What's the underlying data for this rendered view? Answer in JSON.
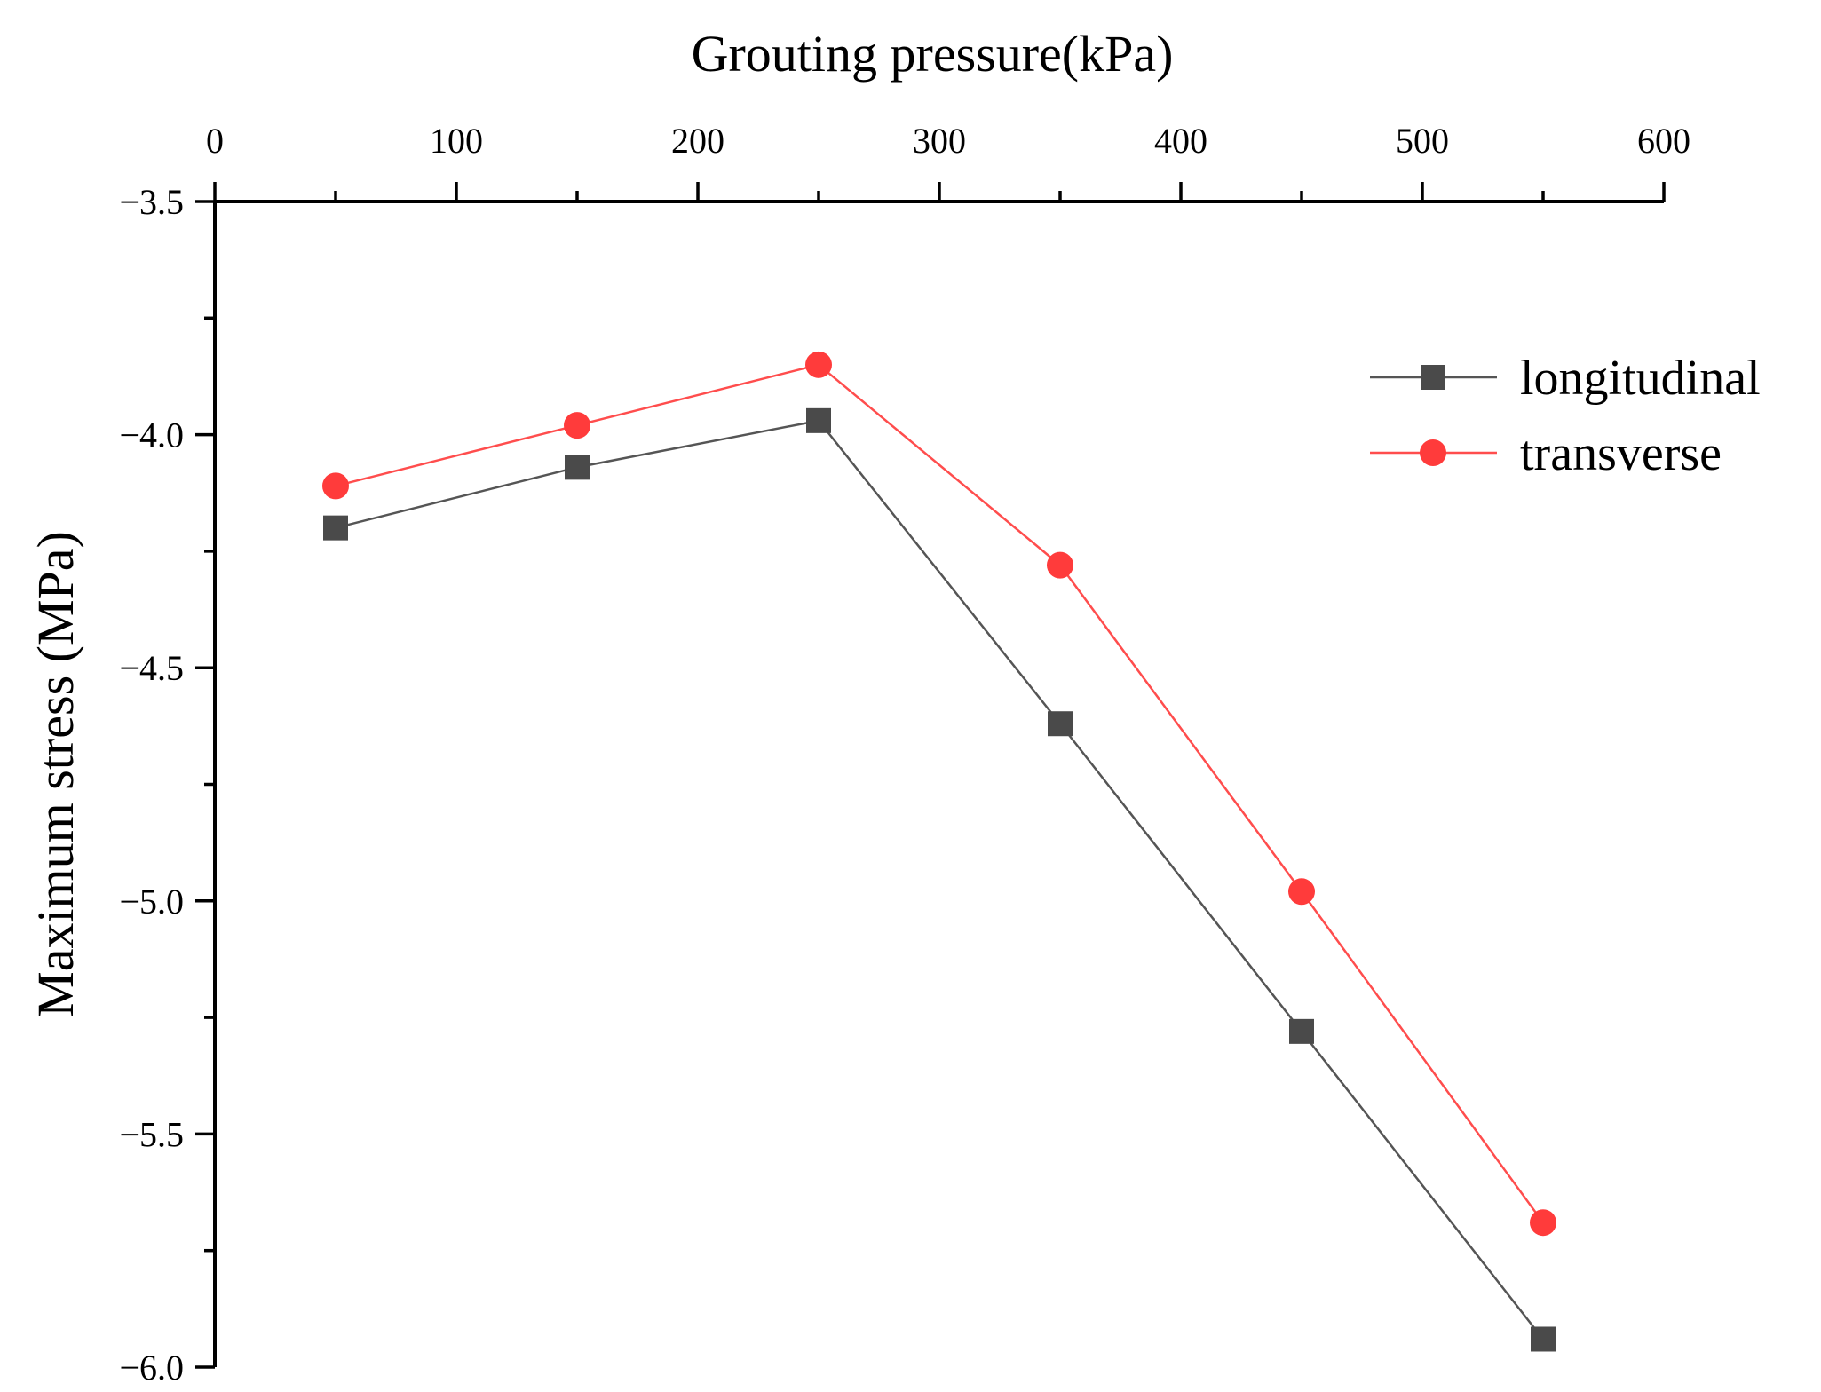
{
  "chart_data": {
    "type": "line",
    "title": "",
    "xlabel": "Grouting pressure(kPa)",
    "ylabel": "Maximum stress (MPa)",
    "xlim": [
      0,
      600
    ],
    "ylim": [
      -6.0,
      -3.5
    ],
    "x_ticks": [
      "0",
      "100",
      "200",
      "300",
      "400",
      "500",
      "600"
    ],
    "y_ticks": [
      "−3.5",
      "−4.0",
      "−4.5",
      "−5.0",
      "−5.5",
      "−6.0"
    ],
    "x_axis_position": "top",
    "grid": false,
    "legend_position": "top-right",
    "x": [
      50,
      150,
      250,
      350,
      450,
      550
    ],
    "series": [
      {
        "name": "longitudinal",
        "marker": "square",
        "line_color": "#555555",
        "marker_color": "#4a4a4a",
        "values": [
          -4.2,
          -4.07,
          -3.97,
          -4.62,
          -5.28,
          -5.94
        ]
      },
      {
        "name": "transverse",
        "marker": "circle",
        "line_color": "#ff4d4d",
        "marker_color": "#ff3b3b",
        "values": [
          -4.11,
          -3.98,
          -3.85,
          -4.28,
          -4.98,
          -5.69
        ]
      }
    ]
  }
}
